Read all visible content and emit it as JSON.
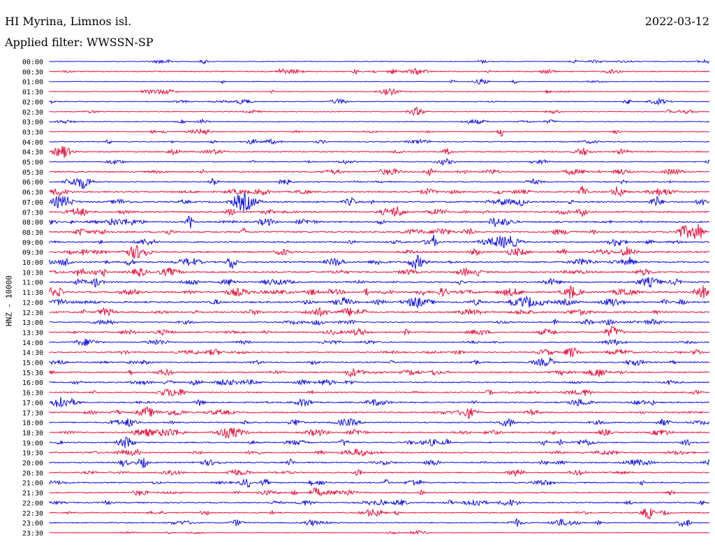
{
  "header": {
    "station": "HI Myrina, Limnos isl.",
    "date": "2022-03-12",
    "filter": "Applied filter: WWSSN-SP"
  },
  "chart_data": {
    "type": "line",
    "title": "HI Myrina, Limnos isl.",
    "subtitle": "Applied filter: WWSSN-SP",
    "date": "2022-03-12",
    "ylabel": "HNZ - 10000",
    "row_labels": [
      "00:00",
      "00:30",
      "01:00",
      "01:30",
      "02:00",
      "02:30",
      "03:00",
      "03:30",
      "04:00",
      "04:30",
      "05:00",
      "05:30",
      "06:00",
      "06:30",
      "07:00",
      "07:30",
      "08:00",
      "08:30",
      "09:00",
      "09:30",
      "10:00",
      "10:30",
      "11:00",
      "11:30",
      "12:00",
      "12:30",
      "13:00",
      "13:30",
      "14:00",
      "14:30",
      "15:00",
      "15:30",
      "16:00",
      "16:30",
      "17:00",
      "17:30",
      "18:00",
      "18:30",
      "19:00",
      "19:30",
      "20:00",
      "20:30",
      "21:00",
      "21:30",
      "22:00",
      "22:30",
      "23:00",
      "23:30"
    ],
    "colors": [
      "#1010e0",
      "#e8103c"
    ],
    "row_activity": [
      0.2,
      0.4,
      0.15,
      0.2,
      0.25,
      0.2,
      0.15,
      0.25,
      0.35,
      0.45,
      0.3,
      0.6,
      0.4,
      0.7,
      0.8,
      0.8,
      0.7,
      0.75,
      0.7,
      0.75,
      0.85,
      0.75,
      0.8,
      0.9,
      0.9,
      0.8,
      0.5,
      0.6,
      0.45,
      0.6,
      0.55,
      0.6,
      0.6,
      0.5,
      0.6,
      0.65,
      0.6,
      0.6,
      0.55,
      0.55,
      0.55,
      0.5,
      0.55,
      0.5,
      0.55,
      0.5,
      0.45,
      0.1
    ],
    "grid": false
  }
}
